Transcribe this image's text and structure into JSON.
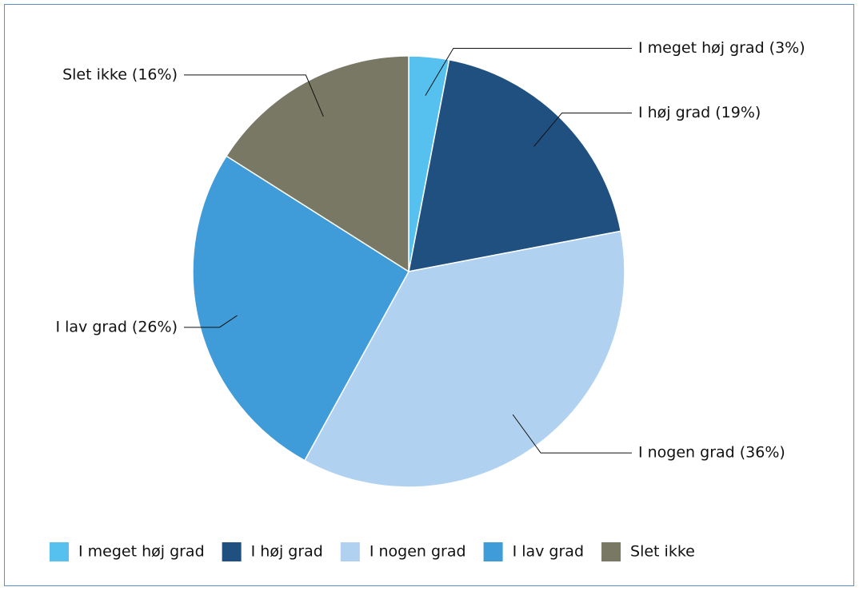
{
  "chart_data": {
    "type": "pie",
    "categories": [
      "I meget høj grad",
      "I høj grad",
      "I nogen grad",
      "I lav grad",
      "Slet ikke"
    ],
    "values": [
      3,
      19,
      36,
      26,
      16
    ],
    "value_labels": [
      "I meget høj grad (3%)",
      "I høj grad (19%)",
      "I nogen grad (36%)",
      "I lav grad (26%)",
      "Slet ikke (16%)"
    ],
    "colors": [
      "#56c1ef",
      "#1f5080",
      "#b0d1f0",
      "#409cd9",
      "#787864"
    ],
    "legend": "bottom"
  }
}
